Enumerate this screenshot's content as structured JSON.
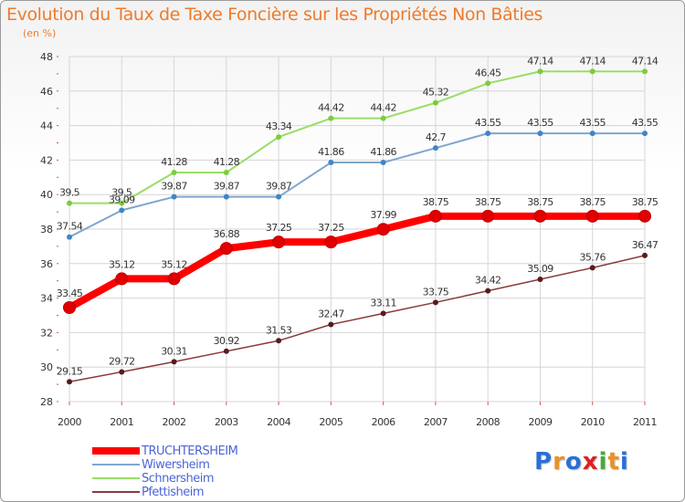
{
  "title": "Evolution du Taux de Taxe Foncière sur les Propriétés Non Bâties",
  "unit_label": "(en %)",
  "logo": {
    "text": "Proxiti",
    "letters": [
      "P",
      "r",
      "o",
      "x",
      "i",
      "t",
      "i"
    ],
    "colors": [
      "#2a6fd6",
      "#e9902a",
      "#2a6fd6",
      "#e02020",
      "#49a83a",
      "#e9902a",
      "#2a6fd6"
    ]
  },
  "chart_data": {
    "type": "line",
    "title": "Evolution du Taux de Taxe Foncière sur les Propriétés Non Bâties",
    "ylabel": "(en %)",
    "x": [
      "2000",
      "2001",
      "2002",
      "2003",
      "2004",
      "2005",
      "2006",
      "2007",
      "2008",
      "2009",
      "2010",
      "2011"
    ],
    "ylim": [
      28,
      48
    ],
    "yticks": [
      28,
      30,
      32,
      34,
      36,
      38,
      40,
      42,
      44,
      46,
      48
    ],
    "grid": true,
    "legend_position": "bottom-left",
    "series": [
      {
        "name": "TRUCHTERSHEIM",
        "color": "#ff0000",
        "marker_color": "#e00000",
        "width": 8,
        "marker_r": 6.5,
        "values": [
          33.45,
          35.12,
          35.12,
          36.88,
          37.25,
          37.25,
          37.99,
          38.75,
          38.75,
          38.75,
          38.75,
          38.75
        ],
        "labels": [
          "33.45",
          "35.12",
          "35.12",
          "36.88",
          "37.25",
          "37.25",
          "37.99",
          "38.75",
          "38.75",
          "38.75",
          "38.75",
          "38.75"
        ]
      },
      {
        "name": "Wiwersheim",
        "color": "#7fa6cf",
        "marker_color": "#3f86c8",
        "width": 2,
        "marker_r": 3,
        "values": [
          37.54,
          39.09,
          39.87,
          39.87,
          39.87,
          41.86,
          41.86,
          42.7,
          43.55,
          43.55,
          43.55,
          43.55
        ],
        "labels": [
          "37.54",
          "39.09",
          "39.87",
          "39.87",
          "39.87",
          "41.86",
          "41.86",
          "42.7",
          "43.55",
          "43.55",
          "43.55",
          "43.55"
        ]
      },
      {
        "name": "Schnersheim",
        "color": "#99dd66",
        "marker_color": "#7ccc3c",
        "width": 2,
        "marker_r": 3,
        "values": [
          39.5,
          39.5,
          41.28,
          41.28,
          43.34,
          44.42,
          44.42,
          45.32,
          46.45,
          47.14,
          47.14,
          47.14
        ],
        "labels": [
          "39.5",
          "39.5",
          "41.28",
          "41.28",
          "43.34",
          "44.42",
          "44.42",
          "45.32",
          "46.45",
          "47.14",
          "47.14",
          "47.14"
        ]
      },
      {
        "name": "Pfettisheim",
        "color": "#8a3a3a",
        "marker_color": "#5a1a1a",
        "width": 1.5,
        "marker_r": 3,
        "values": [
          29.15,
          29.72,
          30.31,
          30.92,
          31.53,
          32.47,
          33.11,
          33.75,
          34.42,
          35.09,
          35.76,
          36.47
        ],
        "labels": [
          "29.15",
          "29.72",
          "30.31",
          "30.92",
          "31.53",
          "32.47",
          "33.11",
          "33.75",
          "34.42",
          "35.09",
          "35.76",
          "36.47"
        ]
      }
    ]
  }
}
